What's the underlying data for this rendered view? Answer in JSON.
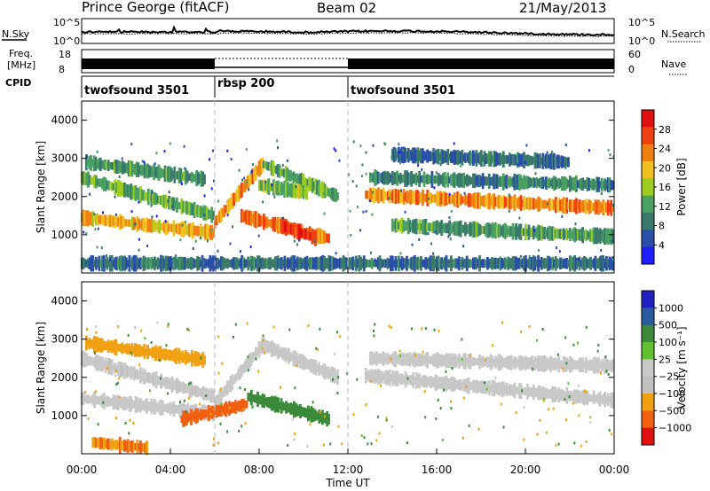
{
  "header": {
    "title": "Prince George (fitACF)",
    "beam": "Beam 02",
    "date": "21/May/2013"
  },
  "strips": {
    "nsky_label": "N.Sky",
    "nsearch_label": "N.Search",
    "noise_ticks_left": [
      "10^5",
      "10^0"
    ],
    "noise_ticks_right": [
      "10^5",
      "10^0"
    ],
    "freq_label_1": "Freq.",
    "freq_label_2": "[MHz]",
    "freq_ticks": [
      "18",
      "8"
    ],
    "nave_label": "Nave",
    "nave_ticks": [
      "60",
      "0"
    ],
    "cpid_label": "CPID",
    "cpid_segments": [
      {
        "label": "twofsound 3501",
        "start_h": 0,
        "end_h": 6
      },
      {
        "label": "rbsp 200",
        "start_h": 6,
        "end_h": 12
      },
      {
        "label": "twofsound 3501",
        "start_h": 12,
        "end_h": 24
      }
    ]
  },
  "colors": {
    "power_scale": [
      "#1e1eff",
      "#2a4fa8",
      "#3a7a6a",
      "#4aa060",
      "#9ccc20",
      "#f0c020",
      "#f08010",
      "#f04010",
      "#e01010"
    ],
    "velocity_scale": [
      "#2020c0",
      "#2a5aa0",
      "#3a8a3a",
      "#60c030",
      "#c8c8c8",
      "#c0c0c0",
      "#f0a010",
      "#f06010",
      "#e01010"
    ]
  },
  "chart_data": [
    {
      "type": "heatmap",
      "title": "Power",
      "xlabel": "Time UT",
      "ylabel": "Slant Range [km]",
      "xlim": [
        0,
        24
      ],
      "ylim": [
        0,
        4500
      ],
      "x_ticks": [
        "00:00",
        "04:00",
        "08:00",
        "12:00",
        "16:00",
        "20:00",
        "00:00"
      ],
      "y_ticks": [
        1000,
        2000,
        3000,
        4000
      ],
      "colorbar_label": "Power [dB]",
      "colorbar_ticks": [
        "4",
        "8",
        "12",
        "16",
        "20",
        "24",
        "28"
      ],
      "colorbar_range": [
        0,
        30
      ],
      "bands": [
        {
          "t0": 0.0,
          "t1": 6.0,
          "r0": 1450,
          "r1": 1050,
          "power": 20
        },
        {
          "t0": 0.0,
          "t1": 6.0,
          "r0": 2500,
          "r1": 1500,
          "power": 12
        },
        {
          "t0": 0.2,
          "t1": 5.6,
          "r0": 2900,
          "r1": 2450,
          "power": 10
        },
        {
          "t0": 6.0,
          "t1": 8.2,
          "r0": 1300,
          "r1": 2850,
          "power": 22
        },
        {
          "t0": 8.2,
          "t1": 11.6,
          "r0": 2850,
          "r1": 2000,
          "power": 12
        },
        {
          "t0": 8.0,
          "t1": 10.2,
          "r0": 2300,
          "r1": 2100,
          "power": 14
        },
        {
          "t0": 7.2,
          "t1": 11.2,
          "r0": 1500,
          "r1": 900,
          "power": 24
        },
        {
          "t0": 9.0,
          "t1": 10.6,
          "r0": 1250,
          "r1": 900,
          "power": 28
        },
        {
          "t0": 12.8,
          "t1": 24.0,
          "r0": 2050,
          "r1": 1700,
          "power": 22
        },
        {
          "t0": 13.0,
          "t1": 24.0,
          "r0": 2500,
          "r1": 2300,
          "power": 8
        },
        {
          "t0": 14.0,
          "t1": 24.0,
          "r0": 1250,
          "r1": 950,
          "power": 10
        },
        {
          "t0": 14.0,
          "t1": 22.0,
          "r0": 3100,
          "r1": 2900,
          "power": 6
        },
        {
          "t0": 0.0,
          "t1": 24.0,
          "r0": 250,
          "r1": 250,
          "power": 6
        }
      ]
    },
    {
      "type": "heatmap",
      "title": "Velocity",
      "xlabel": "Time UT",
      "ylabel": "Slant Range [km]",
      "xlim": [
        0,
        24
      ],
      "ylim": [
        0,
        4500
      ],
      "x_ticks": [
        "00:00",
        "04:00",
        "08:00",
        "12:00",
        "16:00",
        "20:00",
        "00:00"
      ],
      "y_ticks": [
        1000,
        2000,
        3000,
        4000
      ],
      "colorbar_label": "Velocity [m s⁻¹]",
      "colorbar_ticks": [
        "1000",
        "500",
        "100",
        "25",
        "−25",
        "−100",
        "−500",
        "−1000"
      ],
      "bands": [
        {
          "t0": 0.0,
          "t1": 6.0,
          "r0": 1450,
          "r1": 1050,
          "velocity": 0
        },
        {
          "t0": 0.0,
          "t1": 6.0,
          "r0": 2500,
          "r1": 1500,
          "velocity": -10
        },
        {
          "t0": 0.2,
          "t1": 5.6,
          "r0": 2900,
          "r1": 2450,
          "velocity": -150
        },
        {
          "t0": 6.0,
          "t1": 8.2,
          "r0": 1300,
          "r1": 2850,
          "velocity": 0
        },
        {
          "t0": 8.2,
          "t1": 11.6,
          "r0": 2850,
          "r1": 2000,
          "velocity": 0
        },
        {
          "t0": 4.5,
          "t1": 7.5,
          "r0": 900,
          "r1": 1300,
          "velocity": -600
        },
        {
          "t0": 7.5,
          "t1": 11.2,
          "r0": 1500,
          "r1": 900,
          "velocity": 150
        },
        {
          "t0": 12.8,
          "t1": 24.0,
          "r0": 2050,
          "r1": 1400,
          "velocity": 0
        },
        {
          "t0": 13.0,
          "t1": 24.0,
          "r0": 2500,
          "r1": 2300,
          "velocity": 0
        },
        {
          "t0": 0.5,
          "t1": 3.0,
          "r0": 300,
          "r1": 150,
          "velocity": -300
        }
      ]
    }
  ]
}
